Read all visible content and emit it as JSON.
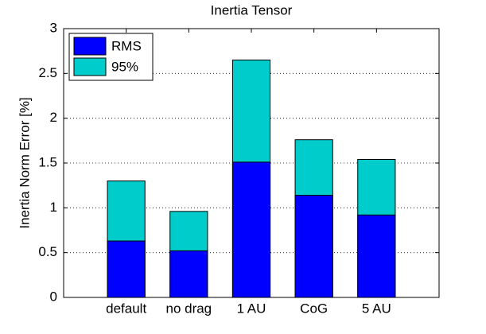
{
  "chart_data": {
    "type": "bar",
    "title": "Inertia Tensor",
    "ylabel": "Inertia Norm Error [%]",
    "categories": [
      "default",
      "no drag",
      "1 AU",
      "CoG",
      "5 AU"
    ],
    "series": [
      {
        "name": "95%",
        "color": "#00cccc",
        "values": [
          1.3,
          0.96,
          2.65,
          1.76,
          1.54
        ]
      },
      {
        "name": "RMS",
        "color": "#0000ff",
        "values": [
          0.63,
          0.52,
          1.51,
          1.14,
          0.92
        ]
      }
    ],
    "legend_order": [
      "RMS",
      "95%"
    ],
    "ylim": [
      0,
      3
    ],
    "yticks": [
      0,
      0.5,
      1,
      1.5,
      2,
      2.5,
      3
    ],
    "grid": true,
    "legend": "upper-left"
  }
}
